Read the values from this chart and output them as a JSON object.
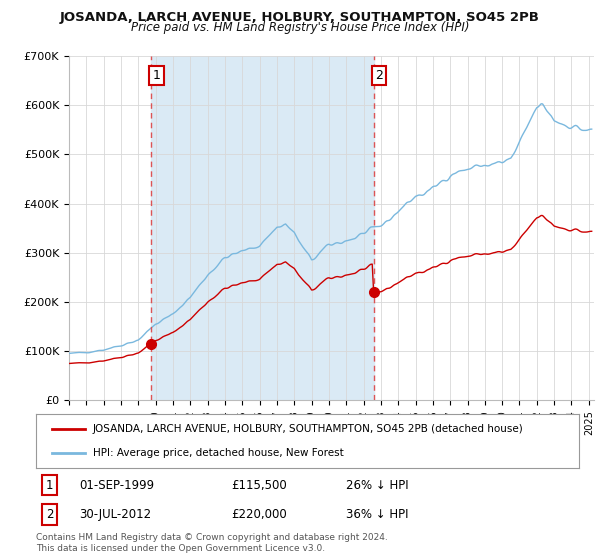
{
  "title": "JOSANDA, LARCH AVENUE, HOLBURY, SOUTHAMPTON, SO45 2PB",
  "subtitle": "Price paid vs. HM Land Registry's House Price Index (HPI)",
  "ylim": [
    0,
    700000
  ],
  "yticks": [
    0,
    100000,
    200000,
    300000,
    400000,
    500000,
    600000,
    700000
  ],
  "ytick_labels": [
    "£0",
    "£100K",
    "£200K",
    "£300K",
    "£400K",
    "£500K",
    "£600K",
    "£700K"
  ],
  "sale1_date": 1999.75,
  "sale1_price": 115500,
  "sale1_label": "1",
  "sale2_date": 2012.58,
  "sale2_price": 220000,
  "sale2_label": "2",
  "hpi_color": "#7ab8de",
  "hpi_fill_color": "#daeaf5",
  "price_color": "#cc0000",
  "vline_color": "#dd4444",
  "annotation_box_color": "#cc0000",
  "legend_label_price": "JOSANDA, LARCH AVENUE, HOLBURY, SOUTHAMPTON, SO45 2PB (detached house)",
  "legend_label_hpi": "HPI: Average price, detached house, New Forest",
  "table_row1": [
    "1",
    "01-SEP-1999",
    "£115,500",
    "26% ↓ HPI"
  ],
  "table_row2": [
    "2",
    "30-JUL-2012",
    "£220,000",
    "36% ↓ HPI"
  ],
  "footer": "Contains HM Land Registry data © Crown copyright and database right 2024.\nThis data is licensed under the Open Government Licence v3.0.",
  "background_color": "#ffffff",
  "grid_color": "#d8d8d8",
  "xlim_start": 1995.0,
  "xlim_end": 2025.3
}
